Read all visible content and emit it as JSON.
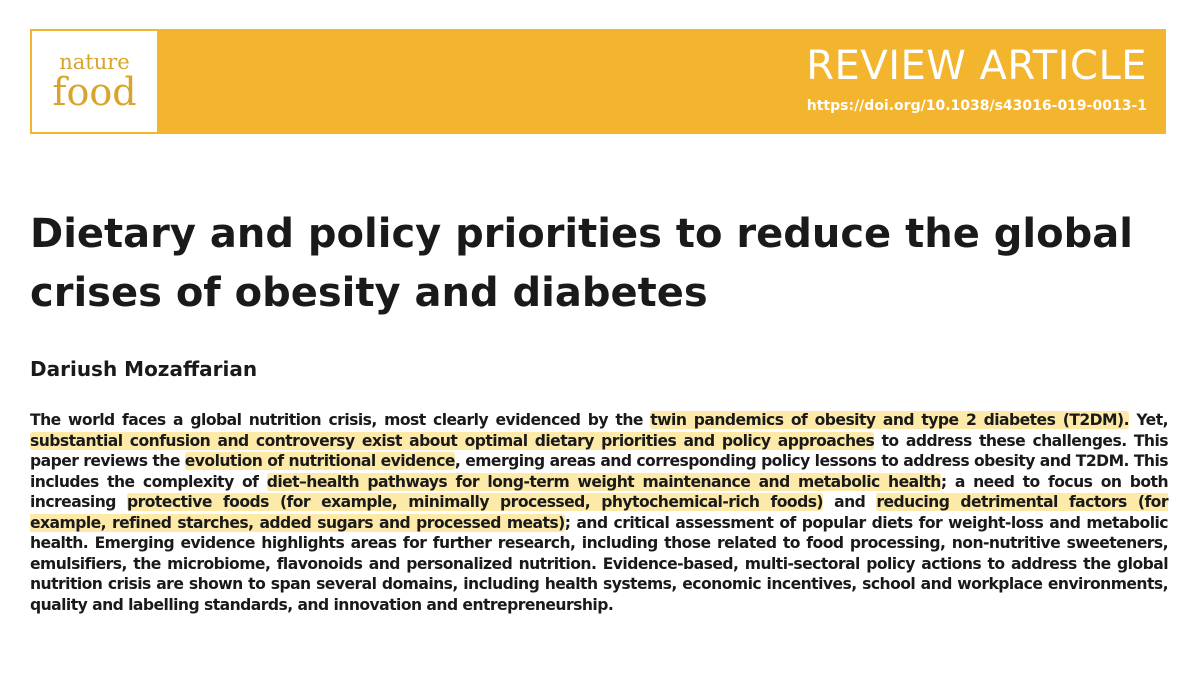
{
  "journal": {
    "logo_line1": "nature",
    "logo_line2": "food",
    "brand_color": "#f3b52d",
    "highlight_color": "#fdeaa9"
  },
  "header": {
    "section": "REVIEW ARTICLE",
    "doi": "https://doi.org/10.1038/s43016-019-0013-1"
  },
  "article": {
    "title": "Dietary and policy priorities to reduce the global crises of obesity and diabetes",
    "author": "Dariush Mozaffarian",
    "abstract": [
      {
        "text": "The world faces a global nutrition crisis, most clearly evidenced by the ",
        "highlight": false
      },
      {
        "text": "twin pandemics of obesity and type 2 diabetes (T2DM).",
        "highlight": true
      },
      {
        "text": " Yet, ",
        "highlight": false
      },
      {
        "text": "substantial confusion and controversy exist about optimal dietary priorities and policy approaches",
        "highlight": true
      },
      {
        "text": " to address these challenges. This paper reviews the ",
        "highlight": false
      },
      {
        "text": "evolution of nutritional evidence",
        "highlight": true
      },
      {
        "text": ", emerging areas and corresponding policy lessons to address obesity and T2DM. This includes the complexity of ",
        "highlight": false
      },
      {
        "text": "diet–health pathways for long-term weight maintenance and metabolic health",
        "highlight": true
      },
      {
        "text": "; a need to focus on both increasing ",
        "highlight": false
      },
      {
        "text": "protective foods (for example, minimally processed, phytochemical-rich foods)",
        "highlight": true
      },
      {
        "text": " and ",
        "highlight": false
      },
      {
        "text": "reducing detrimental factors (for example, refined starches, added sugars and processed meats)",
        "highlight": true
      },
      {
        "text": "; and critical assessment of popular diets for weight-loss and metabolic health. Emerging evidence highlights areas for further research, including those related to food processing, non-nutritive sweeteners, emulsifiers, the microbiome, flavonoids and personalized nutrition. Evidence-based, multi-sectoral policy actions to address the global nutrition crisis are shown to span several domains, including health systems, economic incentives, school and workplace environments, quality and labelling standards, and innovation and entrepreneurship.",
        "highlight": false
      }
    ]
  }
}
